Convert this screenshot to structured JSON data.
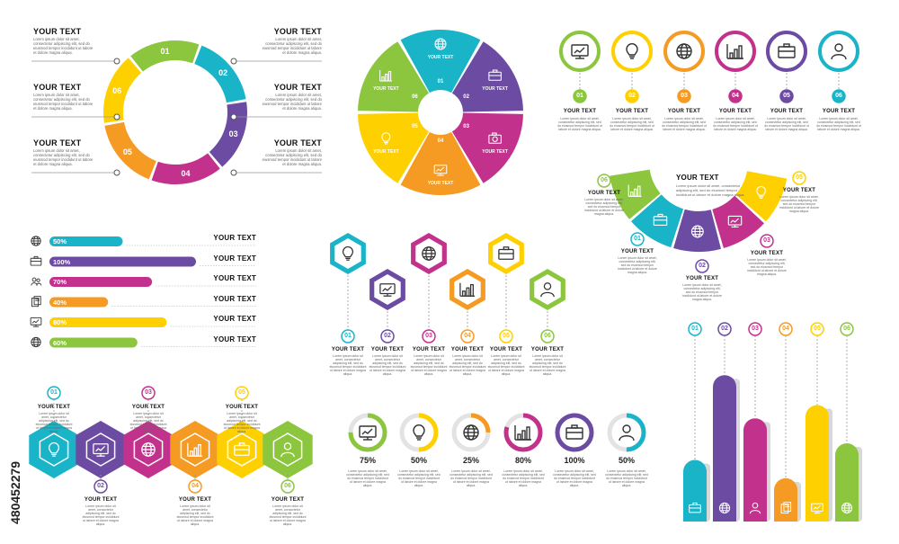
{
  "colors": {
    "green": "#8cc63f",
    "teal": "#1ab4c9",
    "purple": "#6c4ba3",
    "magenta": "#c2328d",
    "orange": "#f59a23",
    "yellow": "#ffd000",
    "text": "#222222",
    "gray": "#888888"
  },
  "placeholder": {
    "title": "YOUR TEXT",
    "body": "Lorem ipsum dolor sit amet, consectetur adipiscing elit, sed do eiusmod tempor incididunt ut labore et dolore magna aliqua."
  },
  "ring_cycle": {
    "labels": [
      "01",
      "02",
      "03",
      "04",
      "05",
      "06"
    ],
    "left_titles": [
      "YOUR TEXT",
      "YOUR TEXT",
      "YOUR TEXT"
    ],
    "right_titles": [
      "YOUR TEXT",
      "YOUR TEXT",
      "YOUR TEXT"
    ]
  },
  "pie_cycle": {
    "labels": [
      "01",
      "02",
      "03",
      "04",
      "05",
      "06"
    ],
    "titles": [
      "YOUR TEXT",
      "YOUR TEXT",
      "YOUR TEXT",
      "YOUR TEXT",
      "YOUR TEXT",
      "YOUR TEXT"
    ],
    "icons": [
      "globe-icon",
      "briefcase-icon",
      "camera-icon",
      "monitor-icon",
      "bulb-icon",
      "bar-chart-icon"
    ]
  },
  "circle_steps": {
    "labels": [
      "01",
      "02",
      "03",
      "04",
      "05",
      "06"
    ],
    "titles": [
      "YOUR TEXT",
      "YOUR TEXT",
      "YOUR TEXT",
      "YOUR TEXT",
      "YOUR TEXT",
      "YOUR TEXT"
    ],
    "icons": [
      "monitor-icon",
      "bulb-icon",
      "globe-icon",
      "bar-chart-icon",
      "briefcase-icon",
      "user-icon"
    ]
  },
  "arc_diagram": {
    "center_title": "YOUR TEXT",
    "labels": [
      "01",
      "02",
      "03",
      "04",
      "05",
      "06"
    ],
    "titles": [
      "YOUR TEXT",
      "YOUR TEXT",
      "YOUR TEXT",
      "YOUR TEXT",
      "YOUR TEXT",
      "YOUR TEXT"
    ]
  },
  "progress_bars": {
    "items": [
      {
        "label": "50%",
        "value": 0.5,
        "title": "YOUR TEXT",
        "icon": "globe-icon"
      },
      {
        "label": "100%",
        "value": 1.0,
        "title": "YOUR TEXT",
        "icon": "briefcase-icon"
      },
      {
        "label": "70%",
        "value": 0.7,
        "title": "YOUR TEXT",
        "icon": "people-icon"
      },
      {
        "label": "40%",
        "value": 0.4,
        "title": "YOUR TEXT",
        "icon": "documents-icon"
      },
      {
        "label": "80%",
        "value": 0.8,
        "title": "YOUR TEXT",
        "icon": "monitor-icon"
      },
      {
        "label": "60%",
        "value": 0.6,
        "title": "YOUR TEXT",
        "icon": "globe-icon"
      }
    ]
  },
  "hex_pins": {
    "labels": [
      "01",
      "02",
      "03",
      "04",
      "05",
      "06"
    ],
    "titles": [
      "YOUR TEXT",
      "YOUR TEXT",
      "YOUR TEXT",
      "YOUR TEXT",
      "YOUR TEXT",
      "YOUR TEXT"
    ],
    "icons": [
      "bulb-icon",
      "monitor-icon",
      "globe-icon",
      "bar-chart-icon",
      "briefcase-icon",
      "user-icon"
    ]
  },
  "hex_row": {
    "labels": [
      "01",
      "02",
      "03",
      "04",
      "05",
      "06"
    ],
    "titles": [
      "YOUR TEXT",
      "YOUR TEXT",
      "YOUR TEXT",
      "YOUR TEXT",
      "YOUR TEXT",
      "YOUR TEXT"
    ],
    "icons": [
      "bulb-icon",
      "monitor-icon",
      "globe-icon",
      "bar-chart-icon",
      "briefcase-icon",
      "user-icon"
    ]
  },
  "percent_rings": {
    "items": [
      {
        "label": "75%",
        "value": 0.75,
        "icon": "monitor-icon"
      },
      {
        "label": "50%",
        "value": 0.5,
        "icon": "bulb-icon"
      },
      {
        "label": "25%",
        "value": 0.25,
        "icon": "globe-icon"
      },
      {
        "label": "80%",
        "value": 0.8,
        "icon": "bar-chart-icon"
      },
      {
        "label": "100%",
        "value": 1.0,
        "icon": "briefcase-icon"
      },
      {
        "label": "50%",
        "value": 0.5,
        "icon": "user-icon"
      }
    ]
  },
  "column_chart": {
    "labels": [
      "01",
      "02",
      "03",
      "04",
      "05",
      "06"
    ],
    "values": [
      0.37,
      0.88,
      0.62,
      0.26,
      0.7,
      0.47
    ],
    "icons": [
      "briefcase-icon",
      "globe-icon",
      "user-icon",
      "documents-icon",
      "monitor-icon",
      "globe-icon"
    ]
  },
  "watermark": "480452279"
}
